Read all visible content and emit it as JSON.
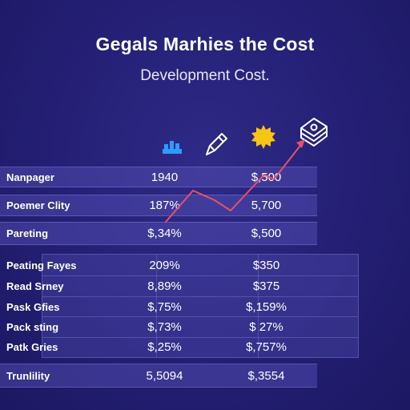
{
  "header": {
    "title": "Gegals Marhies the Cost",
    "subtitle": "Development Cost."
  },
  "icons": [
    "bar-chart-icon",
    "pencil-icon",
    "sun-icon",
    "money-stack-icon"
  ],
  "colors": {
    "trend_line": "#e8506a",
    "bar_icon": "#2f9bff",
    "sun": "#f6c515"
  },
  "top_rows": [
    {
      "label": "Nanpager",
      "value": "1940",
      "cost": "$,500"
    },
    {
      "label": "Poemer Clity",
      "value": "187%",
      "cost": "5,700"
    },
    {
      "label": "Pareting",
      "value": "$,34%",
      "cost": "$,500"
    }
  ],
  "bottom_rows": [
    {
      "label": "Peating Fayes",
      "value": "209%",
      "cost": "$350"
    },
    {
      "label": "Read Srney",
      "value": "8,89%",
      "cost": "$375"
    },
    {
      "label": "Pask Gfies",
      "value": "$,75%",
      "cost": "$,159%"
    },
    {
      "label": "Pack sting",
      "value": "$,73%",
      "cost": "$ 27%"
    },
    {
      "label": "Patk Gries",
      "value": "$,25%",
      "cost": "$,757%"
    }
  ],
  "total_row": {
    "label": "Trunlility",
    "value": "5,5094",
    "cost": "$,3554"
  }
}
